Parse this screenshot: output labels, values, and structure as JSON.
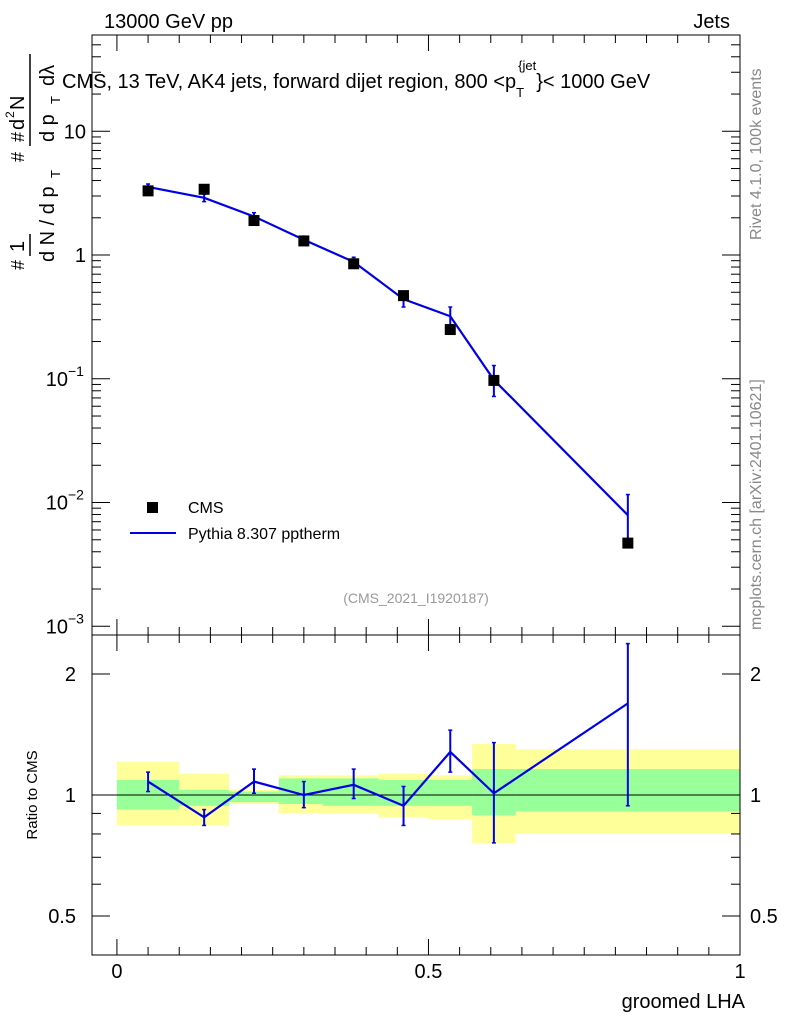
{
  "header": {
    "left": "13000 GeV pp",
    "right": "Jets"
  },
  "side": {
    "rivet": "Rivet 4.1.0,  100k events",
    "mcplots": "mcplots.cern.ch [arXiv:2401.10621]"
  },
  "chart_data": [
    {
      "type": "scatter",
      "title": "CMS, 13 TeV, AK4 jets, forward dijet region, 800 <p_T^{jet}< 1000 GeV",
      "title_parts": {
        "main": "CMS, 13 TeV, AK4 jets, forward dijet region, 800 <p",
        "sub": "T",
        "sup": "{jet",
        "tail": "}< 1000 GeV"
      },
      "ylabel": "1/(dN/dp_T) d²N/(dp_T dλ)",
      "ylabel_parts": {
        "one": "1",
        "den": "d N / d p",
        "num": "d",
        "sup2": "2",
        "N": "N",
        "den2": "d p",
        "lam": "dλ",
        "hash": "#",
        "T": "T"
      },
      "yscale": "log",
      "ylim": [
        0.00085,
        60
      ],
      "xlim": [
        -0.04,
        1.0
      ],
      "y_ticks": [
        {
          "value": 10,
          "label": "10"
        },
        {
          "value": 1,
          "label": "1"
        },
        {
          "value": 0.1,
          "label": "10",
          "exp": "−1"
        },
        {
          "value": 0.01,
          "label": "10",
          "exp": "−2"
        },
        {
          "value": 0.001,
          "label": "10",
          "exp": "−3"
        }
      ],
      "watermark": "(CMS_2021_I1920187)",
      "legend": {
        "placement": "bottom-left",
        "entries": [
          "CMS",
          "Pythia 8.307 pptherm"
        ]
      },
      "series": [
        {
          "name": "CMS",
          "marker": "square",
          "color": "#000000",
          "x": [
            0.05,
            0.14,
            0.22,
            0.3,
            0.38,
            0.46,
            0.535,
            0.605,
            0.82
          ],
          "values": [
            3.3,
            3.4,
            1.9,
            1.3,
            0.85,
            0.47,
            0.25,
            0.097,
            0.0047
          ]
        },
        {
          "name": "Pythia 8.307 pptherm",
          "marker": "line",
          "color": "#0000e6",
          "x": [
            0.05,
            0.14,
            0.22,
            0.3,
            0.38,
            0.46,
            0.535,
            0.605,
            0.82
          ],
          "values": [
            3.55,
            2.9,
            2.05,
            1.33,
            0.88,
            0.44,
            0.32,
            0.098,
            0.0079
          ],
          "err_low": [
            3.35,
            2.7,
            1.9,
            1.25,
            0.81,
            0.38,
            0.27,
            0.072,
            0.0048
          ],
          "err_high": [
            3.75,
            3.1,
            2.2,
            1.42,
            0.96,
            0.51,
            0.38,
            0.128,
            0.0116
          ]
        }
      ]
    },
    {
      "type": "line",
      "ylabel": "Ratio to CMS",
      "xlabel": "groomed LHA",
      "yscale": "log",
      "ylim": [
        0.4,
        2.5
      ],
      "xlim": [
        -0.04,
        1.0
      ],
      "x_ticks": [
        {
          "value": 0,
          "label": "0"
        },
        {
          "value": 0.5,
          "label": "0.5"
        },
        {
          "value": 1,
          "label": "1"
        }
      ],
      "y_ticks": [
        {
          "value": 2,
          "label": "2"
        },
        {
          "value": 1,
          "label": "1"
        },
        {
          "value": 0.5,
          "label": "0.5"
        }
      ],
      "bands": [
        {
          "x0": 0.0,
          "x1": 0.1,
          "inner": [
            0.92,
            1.09
          ],
          "outer": [
            0.84,
            1.21
          ]
        },
        {
          "x0": 0.1,
          "x1": 0.18,
          "inner": [
            0.94,
            1.03
          ],
          "outer": [
            0.84,
            1.13
          ]
        },
        {
          "x0": 0.18,
          "x1": 0.26,
          "inner": [
            0.96,
            1.02
          ],
          "outer": [
            0.95,
            1.03
          ]
        },
        {
          "x0": 0.26,
          "x1": 0.33,
          "inner": [
            0.95,
            1.1
          ],
          "outer": [
            0.9,
            1.12
          ]
        },
        {
          "x0": 0.33,
          "x1": 0.42,
          "inner": [
            0.94,
            1.1
          ],
          "outer": [
            0.9,
            1.12
          ]
        },
        {
          "x0": 0.42,
          "x1": 0.5,
          "inner": [
            0.94,
            1.09
          ],
          "outer": [
            0.88,
            1.13
          ]
        },
        {
          "x0": 0.5,
          "x1": 0.57,
          "inner": [
            0.94,
            1.09
          ],
          "outer": [
            0.87,
            1.12
          ]
        },
        {
          "x0": 0.57,
          "x1": 0.64,
          "inner": [
            0.89,
            1.16
          ],
          "outer": [
            0.76,
            1.34
          ]
        },
        {
          "x0": 0.64,
          "x1": 1.0,
          "inner": [
            0.91,
            1.16
          ],
          "outer": [
            0.8,
            1.3
          ]
        }
      ],
      "series": [
        {
          "name": "Pythia 8.307 pptherm / CMS",
          "color": "#0000e6",
          "x": [
            0.05,
            0.14,
            0.22,
            0.3,
            0.38,
            0.46,
            0.535,
            0.605,
            0.82
          ],
          "values": [
            1.08,
            0.88,
            1.08,
            1.0,
            1.06,
            0.94,
            1.28,
            1.01,
            1.69
          ],
          "err_low": [
            1.02,
            0.84,
            1.01,
            0.93,
            0.98,
            0.84,
            1.14,
            0.76,
            0.94
          ],
          "err_high": [
            1.14,
            0.92,
            1.16,
            1.08,
            1.16,
            1.05,
            1.45,
            1.35,
            2.38
          ]
        }
      ]
    }
  ]
}
